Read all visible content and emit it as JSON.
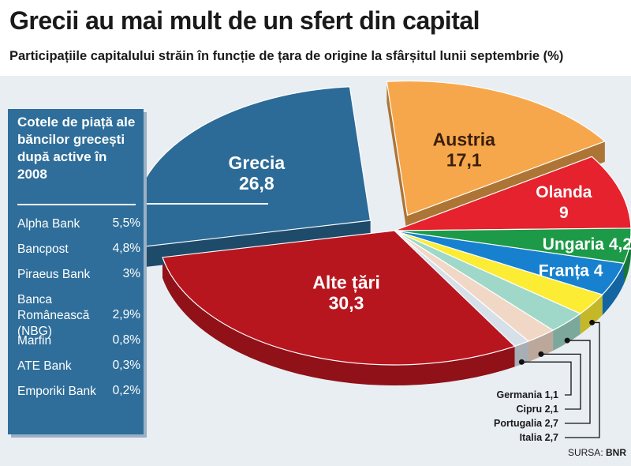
{
  "title": "Grecii au mai mult de un sfert din capital",
  "subtitle": "Participațiile capitalului străin în funcție de țara de origine la sfârșitul lunii septembrie (%)",
  "panel": {
    "heading": "Cotele de piață ale băncilor grecești după active în 2008",
    "rows": [
      {
        "name": "Alpha Bank",
        "value": "5,5%"
      },
      {
        "name": "Bancpost",
        "value": "4,8%"
      },
      {
        "name": "Piraeus Bank",
        "value": "3%"
      },
      {
        "name": "Banca Românească (NBG)",
        "value": "2,9%"
      },
      {
        "name": "Marfin",
        "value": "0,8%"
      },
      {
        "name": "ATE Bank",
        "value": "0,3%"
      },
      {
        "name": "Emporiki Bank",
        "value": "0,2%"
      }
    ]
  },
  "source_label": "SURSA:",
  "source_name": "BNR",
  "chart_data": {
    "type": "pie",
    "slices": [
      {
        "name": "Austria",
        "value": 17.1,
        "label": "17,1",
        "color": "#f7a74b"
      },
      {
        "name": "Olanda",
        "value": 9,
        "label": "9",
        "color": "#e5222d"
      },
      {
        "name": "Ungaria",
        "value": 4.2,
        "label": "4,2",
        "color": "#1d9a48"
      },
      {
        "name": "Franța",
        "value": 4,
        "label": "4",
        "color": "#1781cf"
      },
      {
        "name": "Italia",
        "value": 2.7,
        "label": "2,7",
        "color": "#fcec33"
      },
      {
        "name": "Portugalia",
        "value": 2.7,
        "label": "2,7",
        "color": "#9fd8c8"
      },
      {
        "name": "Cipru",
        "value": 2.1,
        "label": "2,1",
        "color": "#f1d8c6"
      },
      {
        "name": "Germania",
        "value": 1.1,
        "label": "1,1",
        "color": "#d6e0e8"
      },
      {
        "name": "Alte țări",
        "value": 30.3,
        "label": "30,3",
        "color": "#b8161f"
      },
      {
        "name": "Grecia",
        "value": 26.8,
        "label": "26,8",
        "color": "#2c6b97"
      }
    ],
    "exploded": [
      "Austria",
      "Grecia"
    ],
    "small_slice_callouts": [
      "Germania",
      "Cipru",
      "Portugalia",
      "Italia"
    ]
  }
}
